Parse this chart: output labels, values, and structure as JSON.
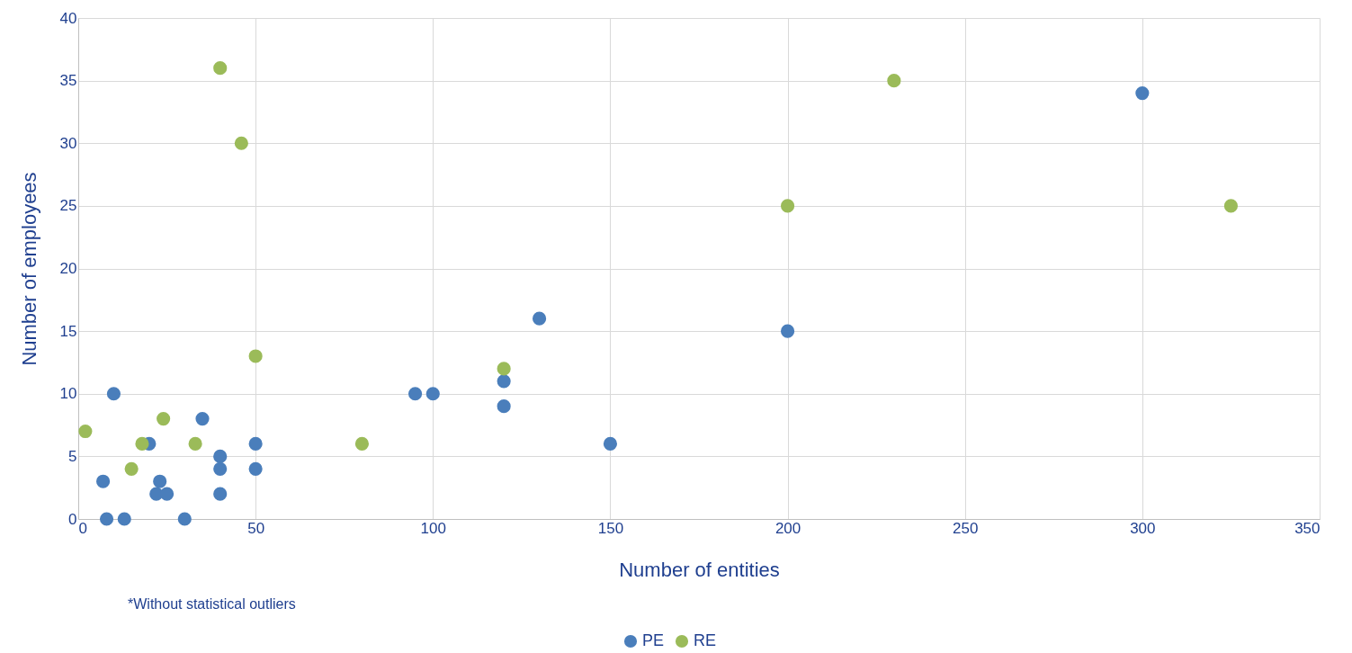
{
  "chart_data": {
    "type": "scatter",
    "xlabel": "Number of entities",
    "ylabel": "Number of employees",
    "annotations": [
      "*Without statistical outliers"
    ],
    "xlim": [
      0,
      350
    ],
    "xticks": [
      0,
      50,
      100,
      150,
      200,
      250,
      300,
      350
    ],
    "ylim": [
      0,
      40
    ],
    "yticks": [
      0,
      5,
      10,
      15,
      20,
      25,
      30,
      35,
      40
    ],
    "grid": true,
    "legend": "bottom",
    "marker": "circle",
    "series": [
      {
        "name": "PE",
        "color": "#4a7ebb",
        "x": [
          7,
          8,
          13,
          10,
          20,
          22,
          23,
          25,
          30,
          35,
          40,
          40,
          40,
          50,
          50,
          95,
          100,
          120,
          120,
          130,
          150,
          200,
          300
        ],
        "values": [
          3,
          0,
          0,
          10,
          6,
          2,
          3,
          2,
          0,
          8,
          5,
          4,
          2,
          6,
          4,
          10,
          10,
          11,
          9,
          16,
          6,
          15,
          34
        ]
      },
      {
        "name": "RE",
        "color": "#9bbb59",
        "x": [
          2,
          15,
          18,
          24,
          33,
          40,
          46,
          50,
          80,
          120,
          200,
          230,
          325
        ],
        "values": [
          7,
          4,
          6,
          8,
          6,
          36,
          30,
          13,
          6,
          12,
          25,
          35,
          25
        ]
      }
    ]
  }
}
